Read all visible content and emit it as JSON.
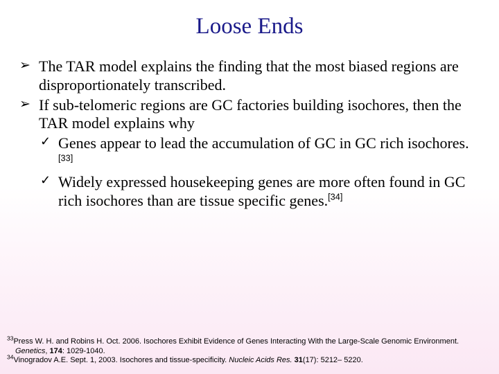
{
  "slide": {
    "title": "Loose Ends",
    "title_color": "#1a1a8a",
    "title_fontsize": 33,
    "body_fontsize": 22,
    "background_gradient": [
      "#ffffff",
      "#fdf2f9",
      "#fbe8f4"
    ],
    "bullets": [
      {
        "marker": "arrow",
        "text": "The TAR model explains the finding that the most biased regions are disproportionately transcribed."
      },
      {
        "marker": "arrow",
        "text": "If sub-telomeric regions are GC factories building isochores, then the TAR model explains why",
        "children": [
          {
            "marker": "check",
            "text": "Genes appear to lead the accumulation of GC in GC rich isochores.",
            "citation": "[33]"
          },
          {
            "marker": "check",
            "text": "Widely expressed housekeeping genes are more often found in GC rich isochores than are tissue specific genes.",
            "citation": "[34]"
          }
        ]
      }
    ],
    "footnotes": [
      {
        "num": "33",
        "authors": "Press W. H. and Robins H.  Oct. 2006. Isochores Exhibit Evidence of Genes Interacting With the Large-Scale Genomic Environment.  ",
        "journal": "Genetics",
        "vol": "174",
        "pages": ": 1029-1040."
      },
      {
        "num": "34",
        "authors": "Vinogradov A.E.  Sept. 1, 2003. Isochores and tissue-specificity.  ",
        "journal": "Nucleic Acids Res.",
        "vol": "31",
        "issue": "(17)",
        "pages": ": 5212– 5220."
      }
    ]
  }
}
